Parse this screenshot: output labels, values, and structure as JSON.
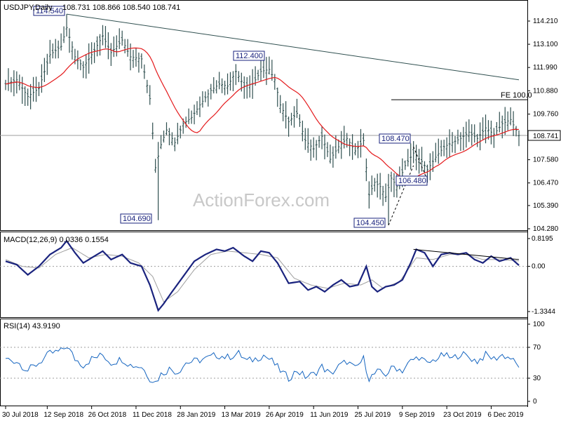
{
  "chart_data": [
    {
      "type": "ohlc",
      "panel": "price",
      "title": "USDJPY,Daily",
      "ohlc_header": "108.731 108.866 108.540 108.741",
      "ylim": [
        104.28,
        114.21
      ],
      "y_ticks": [
        "114.210",
        "113.100",
        "111.990",
        "110.880",
        "109.760",
        "108.650",
        "107.580",
        "106.470",
        "105.390",
        "104.280"
      ],
      "current_price": "108.741",
      "sma_label": "",
      "annotations": [
        {
          "label": "114.540",
          "x_index": 22,
          "y": 114.54
        },
        {
          "label": "104.690",
          "x_index": 55,
          "y": 104.69
        },
        {
          "label": "112.400",
          "x_index": 92,
          "y": 112.4
        },
        {
          "label": "104.450",
          "x_index": 138,
          "y": 104.45
        },
        {
          "label": "108.470",
          "x_index": 147,
          "y": 108.47
        },
        {
          "label": "106.480",
          "x_index": 152,
          "y": 106.48
        }
      ],
      "fe_label": "FE 100.0",
      "fe_level": 110.45,
      "trendline": [
        [
          22,
          114.54
        ],
        [
          185,
          111.4
        ]
      ],
      "close_keys": [
        [
          0,
          111.2
        ],
        [
          4,
          111.4
        ],
        [
          8,
          110.6
        ],
        [
          12,
          111.0
        ],
        [
          16,
          112.6
        ],
        [
          20,
          113.0
        ],
        [
          22,
          113.9
        ],
        [
          25,
          112.5
        ],
        [
          28,
          112.0
        ],
        [
          31,
          112.6
        ],
        [
          35,
          113.5
        ],
        [
          38,
          112.7
        ],
        [
          42,
          113.3
        ],
        [
          45,
          112.5
        ],
        [
          49,
          112.4
        ],
        [
          52,
          110.5
        ],
        [
          54,
          107.2
        ],
        [
          56,
          108.3
        ],
        [
          58,
          109.0
        ],
        [
          61,
          108.4
        ],
        [
          64,
          109.3
        ],
        [
          67,
          109.6
        ],
        [
          70,
          110.2
        ],
        [
          74,
          110.9
        ],
        [
          77,
          111.2
        ],
        [
          80,
          111.1
        ],
        [
          83,
          111.8
        ],
        [
          86,
          111.1
        ],
        [
          89,
          111.2
        ],
        [
          92,
          111.8
        ],
        [
          95,
          111.9
        ],
        [
          97,
          111.4
        ],
        [
          99,
          110.2
        ],
        [
          102,
          109.4
        ],
        [
          105,
          109.8
        ],
        [
          108,
          108.5
        ],
        [
          111,
          108.1
        ],
        [
          114,
          108.7
        ],
        [
          117,
          107.6
        ],
        [
          120,
          108.2
        ],
        [
          123,
          108.6
        ],
        [
          126,
          108.0
        ],
        [
          129,
          108.5
        ],
        [
          131,
          105.9
        ],
        [
          133,
          106.5
        ],
        [
          135,
          106.3
        ],
        [
          137,
          105.8
        ],
        [
          139,
          106.7
        ],
        [
          141,
          106.3
        ],
        [
          144,
          107.3
        ],
        [
          147,
          107.9
        ],
        [
          150,
          107.5
        ],
        [
          152,
          107.1
        ],
        [
          155,
          107.7
        ],
        [
          158,
          108.2
        ],
        [
          161,
          108.4
        ],
        [
          164,
          108.6
        ],
        [
          167,
          108.9
        ],
        [
          170,
          108.6
        ],
        [
          173,
          109.1
        ],
        [
          176,
          108.8
        ],
        [
          179,
          109.3
        ],
        [
          182,
          109.5
        ],
        [
          185,
          108.74
        ]
      ]
    },
    {
      "type": "line",
      "panel": "macd",
      "title": "MACD(12,26,9) 0.0336 0.1554",
      "ylim": [
        -1.3344,
        0.8195
      ],
      "y_ticks": [
        "0.8195",
        "0.00",
        "-1.3344"
      ],
      "macd_keys": [
        [
          0,
          0.15
        ],
        [
          4,
          0.05
        ],
        [
          8,
          -0.25
        ],
        [
          12,
          0.0
        ],
        [
          16,
          0.35
        ],
        [
          20,
          0.55
        ],
        [
          22,
          0.75
        ],
        [
          25,
          0.4
        ],
        [
          28,
          0.1
        ],
        [
          31,
          0.25
        ],
        [
          35,
          0.45
        ],
        [
          38,
          0.2
        ],
        [
          42,
          0.35
        ],
        [
          45,
          0.1
        ],
        [
          49,
          0.0
        ],
        [
          52,
          -0.55
        ],
        [
          55,
          -1.3
        ],
        [
          57,
          -1.1
        ],
        [
          60,
          -0.75
        ],
        [
          64,
          -0.3
        ],
        [
          68,
          0.15
        ],
        [
          72,
          0.35
        ],
        [
          76,
          0.5
        ],
        [
          79,
          0.45
        ],
        [
          82,
          0.55
        ],
        [
          86,
          0.3
        ],
        [
          89,
          0.15
        ],
        [
          92,
          0.45
        ],
        [
          95,
          0.4
        ],
        [
          98,
          0.1
        ],
        [
          102,
          -0.5
        ],
        [
          106,
          -0.45
        ],
        [
          109,
          -0.7
        ],
        [
          112,
          -0.6
        ],
        [
          115,
          -0.75
        ],
        [
          118,
          -0.55
        ],
        [
          121,
          -0.4
        ],
        [
          124,
          -0.6
        ],
        [
          127,
          -0.55
        ],
        [
          130,
          0.0
        ],
        [
          132,
          -0.6
        ],
        [
          134,
          -0.75
        ],
        [
          137,
          -0.6
        ],
        [
          140,
          -0.55
        ],
        [
          143,
          -0.4
        ],
        [
          146,
          0.1
        ],
        [
          148,
          0.5
        ],
        [
          151,
          0.4
        ],
        [
          154,
          0.0
        ],
        [
          157,
          0.35
        ],
        [
          160,
          0.4
        ],
        [
          163,
          0.35
        ],
        [
          166,
          0.4
        ],
        [
          169,
          0.2
        ],
        [
          172,
          0.1
        ],
        [
          175,
          0.3
        ],
        [
          178,
          0.15
        ],
        [
          182,
          0.25
        ],
        [
          185,
          0.03
        ]
      ],
      "signal_keys": [
        [
          0,
          0.2
        ],
        [
          6,
          0.0
        ],
        [
          12,
          -0.05
        ],
        [
          18,
          0.35
        ],
        [
          24,
          0.55
        ],
        [
          30,
          0.25
        ],
        [
          36,
          0.35
        ],
        [
          42,
          0.3
        ],
        [
          48,
          0.1
        ],
        [
          53,
          -0.3
        ],
        [
          57,
          -1.05
        ],
        [
          62,
          -0.75
        ],
        [
          68,
          -0.1
        ],
        [
          74,
          0.35
        ],
        [
          80,
          0.45
        ],
        [
          86,
          0.4
        ],
        [
          92,
          0.35
        ],
        [
          98,
          0.25
        ],
        [
          104,
          -0.35
        ],
        [
          110,
          -0.55
        ],
        [
          116,
          -0.65
        ],
        [
          122,
          -0.5
        ],
        [
          128,
          -0.55
        ],
        [
          132,
          -0.4
        ],
        [
          136,
          -0.65
        ],
        [
          142,
          -0.45
        ],
        [
          148,
          0.25
        ],
        [
          154,
          0.2
        ],
        [
          160,
          0.35
        ],
        [
          166,
          0.35
        ],
        [
          172,
          0.2
        ],
        [
          178,
          0.2
        ],
        [
          185,
          0.16
        ]
      ],
      "trendline": [
        [
          147,
          0.5
        ],
        [
          185,
          0.2
        ]
      ]
    },
    {
      "type": "line",
      "panel": "rsi",
      "title": "RSI(14) 43.9190",
      "ylim": [
        0,
        100
      ],
      "y_ticks": [
        "100",
        "70",
        "30",
        "0"
      ],
      "levels": [
        70,
        30
      ],
      "rsi_keys": [
        [
          0,
          55
        ],
        [
          4,
          52
        ],
        [
          8,
          40
        ],
        [
          12,
          50
        ],
        [
          16,
          62
        ],
        [
          20,
          65
        ],
        [
          22,
          72
        ],
        [
          25,
          55
        ],
        [
          28,
          47
        ],
        [
          31,
          55
        ],
        [
          35,
          60
        ],
        [
          38,
          50
        ],
        [
          42,
          55
        ],
        [
          45,
          47
        ],
        [
          49,
          45
        ],
        [
          52,
          30
        ],
        [
          54,
          25
        ],
        [
          56,
          35
        ],
        [
          59,
          42
        ],
        [
          62,
          38
        ],
        [
          65,
          50
        ],
        [
          68,
          52
        ],
        [
          72,
          55
        ],
        [
          76,
          60
        ],
        [
          80,
          57
        ],
        [
          84,
          62
        ],
        [
          87,
          52
        ],
        [
          90,
          55
        ],
        [
          93,
          60
        ],
        [
          96,
          52
        ],
        [
          99,
          40
        ],
        [
          102,
          30
        ],
        [
          105,
          40
        ],
        [
          108,
          32
        ],
        [
          111,
          35
        ],
        [
          114,
          45
        ],
        [
          117,
          35
        ],
        [
          120,
          45
        ],
        [
          123,
          52
        ],
        [
          126,
          42
        ],
        [
          129,
          55
        ],
        [
          131,
          30
        ],
        [
          134,
          38
        ],
        [
          137,
          35
        ],
        [
          140,
          45
        ],
        [
          143,
          40
        ],
        [
          146,
          52
        ],
        [
          149,
          58
        ],
        [
          152,
          48
        ],
        [
          155,
          55
        ],
        [
          158,
          60
        ],
        [
          161,
          55
        ],
        [
          164,
          62
        ],
        [
          167,
          57
        ],
        [
          170,
          52
        ],
        [
          173,
          60
        ],
        [
          176,
          55
        ],
        [
          179,
          60
        ],
        [
          182,
          56
        ],
        [
          185,
          44
        ]
      ]
    }
  ],
  "x_labels": [
    {
      "label": "30 Jul 2018",
      "x_index": 0
    },
    {
      "label": "12 Sep 2018",
      "x_index": 15
    },
    {
      "label": "26 Oct 2018",
      "x_index": 31
    },
    {
      "label": "11 Dec 2018",
      "x_index": 47
    },
    {
      "label": "28 Jan 2019",
      "x_index": 63
    },
    {
      "label": "13 Mar 2019",
      "x_index": 79
    },
    {
      "label": "26 Apr 2019",
      "x_index": 95
    },
    {
      "label": "11 Jun 2019",
      "x_index": 111
    },
    {
      "label": "25 Jul 2019",
      "x_index": 127
    },
    {
      "label": "9 Sep 2019",
      "x_index": 143
    },
    {
      "label": "23 Oct 2019",
      "x_index": 159
    },
    {
      "label": "6 Dec 2019",
      "x_index": 175
    }
  ],
  "watermark": "ActionForex.com",
  "colors": {
    "price_bars": "#2f4f4f",
    "sma": "#e41a1c",
    "macd": "#1a237e",
    "signal": "#9e9e9e",
    "box_border": "#1a237e"
  }
}
